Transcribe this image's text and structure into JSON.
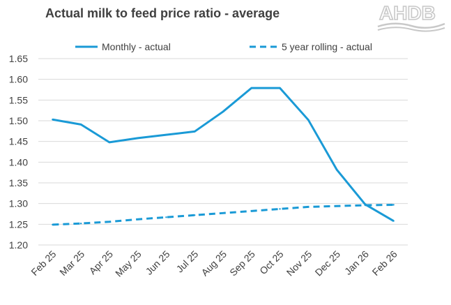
{
  "logo_text": "AHDB",
  "colors": {
    "series": "#1a9ad6",
    "grid": "#d9d9d9",
    "text": "#404040",
    "logo": "#c8c8c8"
  },
  "chart_data": {
    "type": "line",
    "title": "Actual milk to feed price ratio - average",
    "categories": [
      "Feb 25",
      "Mar 25",
      "Apr 25",
      "May 25",
      "Jun 25",
      "Jul 25",
      "Aug 25",
      "Sep 25",
      "Oct 25",
      "Nov 25",
      "Dec 25",
      "Jan 26",
      "Feb 26"
    ],
    "ylim": [
      1.2,
      1.65
    ],
    "yticks": [
      "1.20",
      "1.25",
      "1.30",
      "1.35",
      "1.40",
      "1.45",
      "1.50",
      "1.55",
      "1.60",
      "1.65"
    ],
    "grid": "horizontal",
    "legend_position": "top",
    "series": [
      {
        "name": "Monthly - actual",
        "style": "solid",
        "values": [
          1.503,
          1.491,
          1.448,
          1.458,
          1.466,
          1.474,
          1.522,
          1.579,
          1.579,
          1.502,
          1.382,
          1.298,
          1.258
        ]
      },
      {
        "name": "5 year rolling - actual",
        "style": "dashed",
        "values": [
          1.249,
          1.252,
          1.256,
          1.262,
          1.267,
          1.272,
          1.277,
          1.282,
          1.287,
          1.292,
          1.294,
          1.296,
          1.297
        ]
      }
    ]
  }
}
